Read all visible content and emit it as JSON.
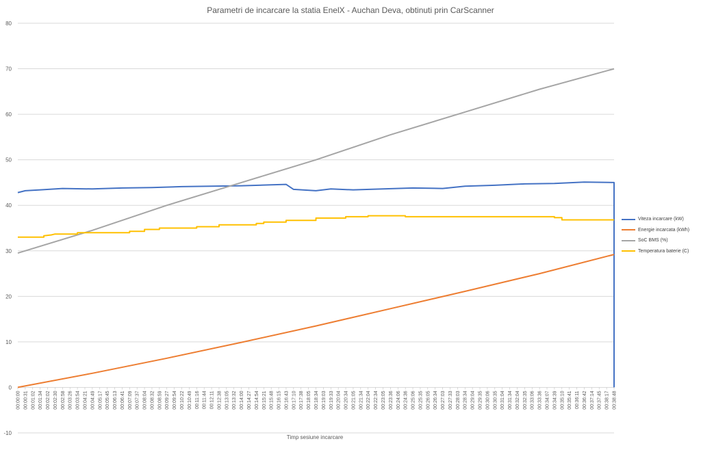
{
  "chart_data": {
    "type": "line",
    "title": "Parametri de incarcare la statia EnelX - Auchan Deva, obtinuti prin CarScanner",
    "xlabel": "Timp sesiune incarcare",
    "ylabel": "",
    "ylim": [
      -10,
      80
    ],
    "yticks": [
      -10,
      0,
      10,
      20,
      30,
      40,
      50,
      60,
      70,
      80
    ],
    "grid": "horizontal",
    "legend_position": "right",
    "x_tick_labels": [
      "00:00:00",
      "00:00:31",
      "00:01:02",
      "00:01:34",
      "00:02:02",
      "00:02:30",
      "00:02:58",
      "00:03:26",
      "00:03:54",
      "00:04:21",
      "00:04:49",
      "00:05:17",
      "00:05:45",
      "00:06:13",
      "00:06:41",
      "00:07:09",
      "00:07:37",
      "00:08:04",
      "00:08:32",
      "00:08:59",
      "00:09:27",
      "00:09:54",
      "00:10:22",
      "00:10:49",
      "00:11:16",
      "00:11:44",
      "00:12:11",
      "00:12:38",
      "00:13:05",
      "00:13:32",
      "00:14:00",
      "00:14:27",
      "00:14:54",
      "00:15:21",
      "00:15:48",
      "00:16:15",
      "00:16:43",
      "00:17:10",
      "00:17:38",
      "00:18:05",
      "00:18:34",
      "00:19:03",
      "00:19:33",
      "00:20:04",
      "00:20:34",
      "00:21:05",
      "00:21:34",
      "00:22:04",
      "00:22:34",
      "00:23:05",
      "00:23:36",
      "00:24:06",
      "00:24:36",
      "00:25:06",
      "00:25:35",
      "00:26:05",
      "00:26:34",
      "00:27:03",
      "00:27:33",
      "00:28:03",
      "00:28:34",
      "00:29:04",
      "00:29:35",
      "00:30:06",
      "00:30:35",
      "00:31:04",
      "00:31:34",
      "00:32:04",
      "00:32:35",
      "00:33:06",
      "00:33:36",
      "00:34:07",
      "00:34:39",
      "00:35:10",
      "00:35:41",
      "00:36:11",
      "00:36:42",
      "00:37:14",
      "00:37:45",
      "00:38:17",
      "00:38:48"
    ],
    "series": [
      {
        "name": "Viteza incarcare (kW)",
        "color": "#4472C4",
        "points": [
          [
            0,
            42.8
          ],
          [
            1,
            43.2
          ],
          [
            3,
            43.4
          ],
          [
            6,
            43.7
          ],
          [
            10,
            43.6
          ],
          [
            14,
            43.8
          ],
          [
            18,
            43.9
          ],
          [
            22,
            44.1
          ],
          [
            26,
            44.2
          ],
          [
            30,
            44.3
          ],
          [
            34,
            44.5
          ],
          [
            36,
            44.6
          ],
          [
            37,
            43.5
          ],
          [
            40,
            43.2
          ],
          [
            42,
            43.6
          ],
          [
            45,
            43.4
          ],
          [
            49,
            43.6
          ],
          [
            53,
            43.8
          ],
          [
            57,
            43.7
          ],
          [
            60,
            44.2
          ],
          [
            64,
            44.4
          ],
          [
            68,
            44.7
          ],
          [
            72,
            44.8
          ],
          [
            76,
            45.1
          ],
          [
            80,
            45.0
          ],
          [
            80,
            0
          ]
        ]
      },
      {
        "name": "Energie incarcata (kWh)",
        "color": "#ED7D31",
        "points": [
          [
            0,
            0
          ],
          [
            10,
            3.1
          ],
          [
            20,
            6.4
          ],
          [
            30,
            9.9
          ],
          [
            40,
            13.5
          ],
          [
            50,
            17.3
          ],
          [
            60,
            21.1
          ],
          [
            70,
            25.0
          ],
          [
            80,
            29.2
          ]
        ]
      },
      {
        "name": "SoC BMS (%)",
        "color": "#A5A5A5",
        "points": [
          [
            0,
            29.5
          ],
          [
            10,
            34.5
          ],
          [
            20,
            40.0
          ],
          [
            30,
            45.0
          ],
          [
            40,
            50.0
          ],
          [
            50,
            55.5
          ],
          [
            60,
            60.5
          ],
          [
            70,
            65.5
          ],
          [
            80,
            70.0
          ]
        ]
      },
      {
        "name": "Temperatura baterie (C)",
        "color": "#FFC000",
        "points": [
          [
            0,
            33.0
          ],
          [
            3.5,
            33.0
          ],
          [
            3.5,
            33.3
          ],
          [
            4.5,
            33.5
          ],
          [
            5,
            33.7
          ],
          [
            8,
            33.7
          ],
          [
            8,
            34.0
          ],
          [
            15,
            34.0
          ],
          [
            15,
            34.3
          ],
          [
            17,
            34.3
          ],
          [
            17,
            34.7
          ],
          [
            19,
            34.7
          ],
          [
            19,
            35.0
          ],
          [
            24,
            35.0
          ],
          [
            24,
            35.3
          ],
          [
            27,
            35.3
          ],
          [
            27,
            35.7
          ],
          [
            32,
            35.7
          ],
          [
            32,
            36.0
          ],
          [
            33,
            36.0
          ],
          [
            33,
            36.3
          ],
          [
            36,
            36.3
          ],
          [
            36,
            36.7
          ],
          [
            40,
            36.7
          ],
          [
            40,
            37.2
          ],
          [
            44,
            37.2
          ],
          [
            44,
            37.5
          ],
          [
            47,
            37.5
          ],
          [
            47,
            37.7
          ],
          [
            52,
            37.7
          ],
          [
            52,
            37.5
          ],
          [
            72,
            37.5
          ],
          [
            72,
            37.3
          ],
          [
            73,
            37.3
          ],
          [
            73,
            36.8
          ],
          [
            80,
            36.8
          ]
        ]
      }
    ]
  }
}
